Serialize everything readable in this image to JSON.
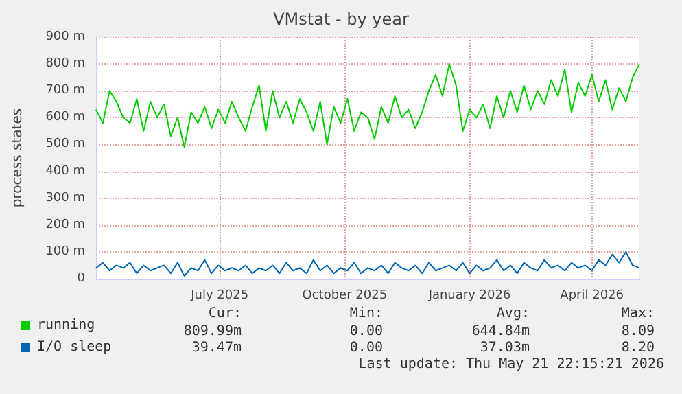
{
  "chart_data": {
    "type": "line",
    "title": "VMstat - by year",
    "ylabel": "process states",
    "x": [
      "2025-04-16",
      "2025-04-21",
      "2025-04-26",
      "2025-05-01",
      "2025-05-06",
      "2025-05-11",
      "2025-05-16",
      "2025-05-21",
      "2025-05-26",
      "2025-05-31",
      "2025-06-05",
      "2025-06-10",
      "2025-06-15",
      "2025-06-20",
      "2025-06-25",
      "2025-06-30",
      "2025-07-05",
      "2025-07-10",
      "2025-07-15",
      "2025-07-20",
      "2025-07-25",
      "2025-07-30",
      "2025-08-04",
      "2025-08-09",
      "2025-08-14",
      "2025-08-19",
      "2025-08-24",
      "2025-08-29",
      "2025-09-03",
      "2025-09-08",
      "2025-09-13",
      "2025-09-18",
      "2025-09-23",
      "2025-09-28",
      "2025-10-03",
      "2025-10-08",
      "2025-10-13",
      "2025-10-18",
      "2025-10-23",
      "2025-10-28",
      "2025-11-02",
      "2025-11-07",
      "2025-11-12",
      "2025-11-17",
      "2025-11-22",
      "2025-11-27",
      "2025-12-02",
      "2025-12-07",
      "2025-12-12",
      "2025-12-17",
      "2025-12-22",
      "2025-12-27",
      "2026-01-01",
      "2026-01-06",
      "2026-01-11",
      "2026-01-16",
      "2026-01-21",
      "2026-01-26",
      "2026-01-31",
      "2026-02-05",
      "2026-02-10",
      "2026-02-15",
      "2026-02-20",
      "2026-02-25",
      "2026-03-02",
      "2026-03-07",
      "2026-03-12",
      "2026-03-17",
      "2026-03-22",
      "2026-03-27",
      "2026-04-01",
      "2026-04-06",
      "2026-04-11",
      "2026-04-16",
      "2026-04-21",
      "2026-04-26",
      "2026-05-01",
      "2026-05-06",
      "2026-05-11",
      "2026-05-16",
      "2026-05-21"
    ],
    "series": [
      {
        "name": "running",
        "color": "#00cc00",
        "values": [
          630,
          580,
          700,
          660,
          600,
          580,
          670,
          550,
          660,
          600,
          650,
          530,
          600,
          490,
          620,
          580,
          640,
          560,
          630,
          580,
          660,
          600,
          550,
          640,
          720,
          550,
          700,
          600,
          660,
          580,
          670,
          620,
          550,
          660,
          500,
          640,
          580,
          670,
          550,
          620,
          600,
          520,
          640,
          580,
          680,
          600,
          630,
          560,
          620,
          700,
          760,
          680,
          800,
          720,
          550,
          630,
          600,
          650,
          560,
          680,
          600,
          700,
          620,
          720,
          630,
          700,
          650,
          740,
          680,
          780,
          620,
          730,
          680,
          760,
          660,
          740,
          630,
          710,
          660,
          750,
          800
        ]
      },
      {
        "name": "I/O sleep",
        "color": "#0066b3",
        "values": [
          40,
          60,
          30,
          50,
          40,
          60,
          20,
          50,
          30,
          40,
          50,
          20,
          60,
          10,
          40,
          30,
          70,
          20,
          50,
          30,
          40,
          30,
          50,
          20,
          40,
          30,
          50,
          20,
          60,
          30,
          40,
          20,
          70,
          30,
          50,
          20,
          40,
          30,
          60,
          20,
          40,
          30,
          50,
          20,
          60,
          40,
          30,
          50,
          20,
          60,
          30,
          40,
          50,
          30,
          60,
          20,
          50,
          30,
          40,
          70,
          30,
          50,
          20,
          60,
          40,
          30,
          70,
          40,
          50,
          30,
          60,
          40,
          50,
          30,
          70,
          50,
          90,
          60,
          100,
          50,
          40
        ]
      }
    ],
    "xlim": [
      "2025-04-16",
      "2026-05-21"
    ],
    "xticks": [
      {
        "value": "2025-07-16",
        "label": "July 2025"
      },
      {
        "value": "2025-10-16",
        "label": "October 2025"
      },
      {
        "value": "2026-01-16",
        "label": "January 2026"
      },
      {
        "value": "2026-04-16",
        "label": "April 2026"
      }
    ],
    "ylim": [
      0,
      900
    ],
    "yticks": [
      0,
      {
        "value": 100,
        "label": "100 m"
      },
      {
        "value": 200,
        "label": "200 m"
      },
      {
        "value": 300,
        "label": "300 m"
      },
      {
        "value": 400,
        "label": "400 m"
      },
      {
        "value": 500,
        "label": "500 m"
      },
      {
        "value": 600,
        "label": "600 m"
      },
      {
        "value": 700,
        "label": "700 m"
      },
      {
        "value": 800,
        "label": "800 m"
      },
      {
        "value": 900,
        "label": "900 m"
      }
    ],
    "grid": true,
    "legend": "bottom left",
    "marker": "none",
    "line_style": "solid",
    "annotations": [
      "Cur:",
      "Min:",
      "Avg:",
      "Max:",
      "809.99m",
      "0.00",
      "644.84m",
      "8.09",
      "39.47m",
      "0.00",
      "37.03m",
      "8.20",
      "Last update: Thu May 21 22:15:21 2026"
    ]
  }
}
